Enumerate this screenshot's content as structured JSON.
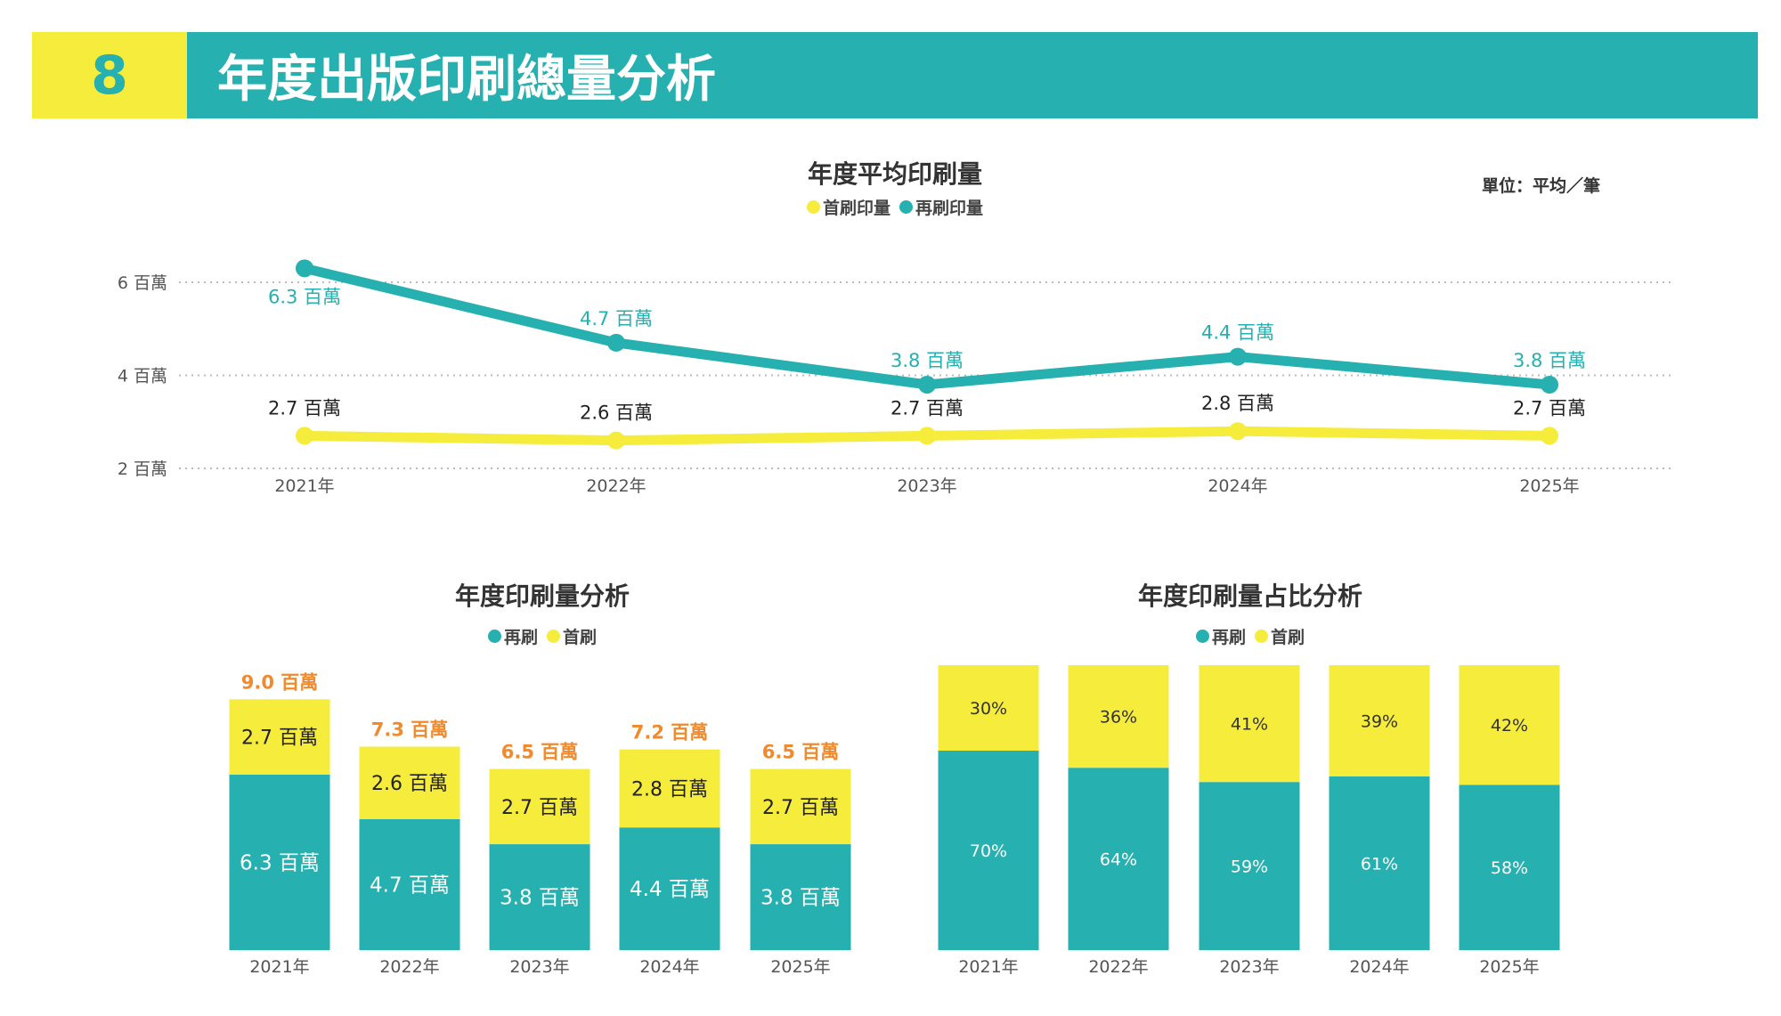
{
  "header": {
    "number": "8",
    "title": "年度出版印刷總量分析"
  },
  "colors": {
    "teal": "#26b0b0",
    "yellow": "#f5ec3c",
    "orange": "#f08a2c"
  },
  "chart_data": [
    {
      "type": "line",
      "title": "年度平均印刷量",
      "unit_label": "單位：平均／筆",
      "categories": [
        "2021年",
        "2022年",
        "2023年",
        "2024年",
        "2025年"
      ],
      "yticks": [
        {
          "value": 2,
          "label": "2 百萬"
        },
        {
          "value": 4,
          "label": "4 百萬"
        },
        {
          "value": 6,
          "label": "6 百萬"
        }
      ],
      "ylim": [
        2,
        6
      ],
      "grid": true,
      "legend_position": "top-center",
      "series": [
        {
          "name": "首刷印量",
          "color": "#f5ec3c",
          "values": [
            2.7,
            2.6,
            2.7,
            2.8,
            2.7
          ],
          "labels": [
            "2.7 百萬",
            "2.6 百萬",
            "2.7 百萬",
            "2.8 百萬",
            "2.7 百萬"
          ]
        },
        {
          "name": "再刷印量",
          "color": "#26b0b0",
          "values": [
            6.3,
            4.7,
            3.8,
            4.4,
            3.8
          ],
          "labels": [
            "6.3 百萬",
            "4.7 百萬",
            "3.8 百萬",
            "4.4 百萬",
            "3.8 百萬"
          ]
        }
      ]
    },
    {
      "type": "bar",
      "stacked": true,
      "title": "年度印刷量分析",
      "categories": [
        "2021年",
        "2022年",
        "2023年",
        "2024年",
        "2025年"
      ],
      "legend": [
        "再刷",
        "首刷"
      ],
      "legend_position": "top-center",
      "series": [
        {
          "name": "再刷",
          "color": "#26b0b0",
          "values": [
            6.3,
            4.7,
            3.8,
            4.4,
            3.8
          ],
          "labels": [
            "6.3 百萬",
            "4.7 百萬",
            "3.8 百萬",
            "4.4 百萬",
            "3.8 百萬"
          ]
        },
        {
          "name": "首刷",
          "color": "#f5ec3c",
          "values": [
            2.7,
            2.6,
            2.7,
            2.8,
            2.7
          ],
          "labels": [
            "2.7 百萬",
            "2.6 百萬",
            "2.7 百萬",
            "2.8 百萬",
            "2.7 百萬"
          ]
        }
      ],
      "totals": [
        9.0,
        7.3,
        6.5,
        7.2,
        6.5
      ],
      "total_labels": [
        "9.0 百萬",
        "7.3 百萬",
        "6.5 百萬",
        "7.2 百萬",
        "6.5 百萬"
      ]
    },
    {
      "type": "bar",
      "stacked": true,
      "percent": true,
      "title": "年度印刷量占比分析",
      "categories": [
        "2021年",
        "2022年",
        "2023年",
        "2024年",
        "2025年"
      ],
      "legend": [
        "再刷",
        "首刷"
      ],
      "legend_position": "top-center",
      "series": [
        {
          "name": "再刷",
          "color": "#26b0b0",
          "values": [
            70,
            64,
            59,
            61,
            58
          ],
          "labels": [
            "70%",
            "64%",
            "59%",
            "61%",
            "58%"
          ]
        },
        {
          "name": "首刷",
          "color": "#f5ec3c",
          "values": [
            30,
            36,
            41,
            39,
            42
          ],
          "labels": [
            "30%",
            "36%",
            "41%",
            "39%",
            "42%"
          ]
        }
      ]
    }
  ]
}
